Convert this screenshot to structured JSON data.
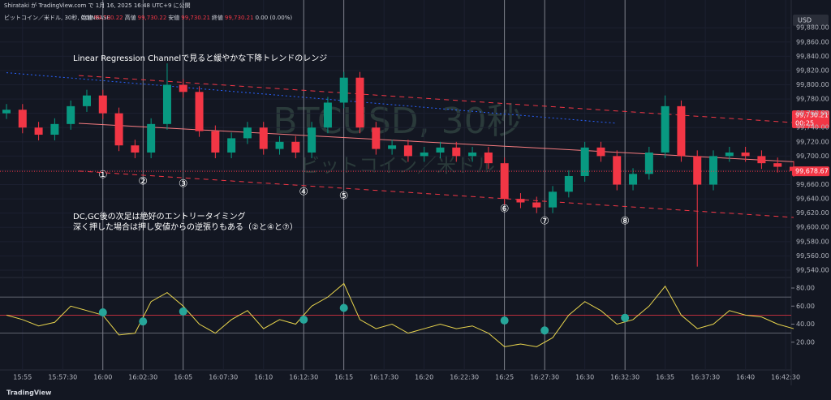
{
  "chart_data": {
    "type": "candlestick",
    "publisher": "Shirataki が TradingView.com で 1月 16, 2025 16:48 UTC+9 に公開",
    "legend": {
      "symbol": "ビットコイン／米ドル, 30秒, COINBASE",
      "items": [
        "始値",
        "99,730.22",
        "高値",
        "99,730.22",
        "安値",
        "99,730.21",
        "終値",
        "99,730.21",
        "0.00 (0.00%)"
      ]
    },
    "watermark": [
      "BTCUSD, 30秒",
      "ビットコイン／米ドル"
    ],
    "currency": "USD",
    "price_box": [
      "99,730.21",
      "00:25"
    ],
    "last_price": {
      "value": 99678.67,
      "label": "99,678.67"
    },
    "footer": "TradingView",
    "annotations": [
      "Linear Regression Channelで見ると緩やかな下降トレンドのレンジ",
      "DC,GC後の次足は絶好のエントリータイミング",
      "深く押した場合は押し安値からの逆張りもある（②と④と⑦）"
    ],
    "markers": {
      "labels": [
        "①",
        "②",
        "③",
        "④",
        "⑤",
        "⑥",
        "⑦",
        "⑧"
      ],
      "x": [
        "16:00",
        "16:02:30",
        "16:05",
        "16:12:30",
        "16:15",
        "16:25",
        "16:27:30",
        "16:32:30"
      ]
    },
    "x": [
      "15:54",
      "15:55",
      "15:56",
      "15:57",
      "15:58",
      "15:59",
      "16:00",
      "16:01",
      "16:02",
      "16:03",
      "16:04",
      "16:05",
      "16:06",
      "16:07",
      "16:08",
      "16:09",
      "16:10",
      "16:11",
      "16:12",
      "16:13",
      "16:14",
      "16:15",
      "16:16",
      "16:17",
      "16:18",
      "16:19",
      "16:20",
      "16:21",
      "16:22",
      "16:23",
      "16:24",
      "16:25",
      "16:26",
      "16:27",
      "16:28",
      "16:29",
      "16:30",
      "16:31",
      "16:32",
      "16:33",
      "16:34",
      "16:35",
      "16:36",
      "16:37",
      "16:38",
      "16:39",
      "16:40",
      "16:41",
      "16:42",
      "16:43"
    ],
    "open": [
      99760,
      99765,
      99740,
      99730,
      99745,
      99770,
      99785,
      99760,
      99715,
      99705,
      99745,
      99800,
      99790,
      99735,
      99705,
      99725,
      99740,
      99710,
      99720,
      99705,
      99740,
      99775,
      99810,
      99740,
      99710,
      99715,
      99700,
      99705,
      99712,
      99700,
      99705,
      99690,
      99640,
      99635,
      99628,
      99650,
      99672,
      99712,
      99700,
      99660,
      99675,
      99705,
      99770,
      99700,
      99660,
      99700,
      99705,
      99700,
      99690,
      99685
    ],
    "high": [
      99773,
      99773,
      99748,
      99753,
      99778,
      99793,
      99793,
      99768,
      99723,
      99753,
      99830,
      99808,
      99798,
      99743,
      99733,
      99748,
      99748,
      99728,
      99728,
      99748,
      99783,
      99818,
      99818,
      99748,
      99723,
      99723,
      99713,
      99720,
      99720,
      99713,
      99713,
      99698,
      99648,
      99643,
      99658,
      99680,
      99720,
      99720,
      99708,
      99683,
      99713,
      99785,
      99778,
      99708,
      99708,
      99713,
      99713,
      99708,
      99698,
      99693
    ],
    "low": [
      99752,
      99732,
      99722,
      99722,
      99737,
      99762,
      99752,
      99707,
      99697,
      99697,
      99737,
      99782,
      99727,
      99697,
      99697,
      99717,
      99702,
      99702,
      99697,
      99697,
      99732,
      99767,
      99732,
      99702,
      99702,
      99692,
      99692,
      99697,
      99692,
      99692,
      99682,
      99632,
      99627,
      99620,
      99620,
      99642,
      99664,
      99692,
      99652,
      99652,
      99667,
      99697,
      99692,
      99545,
      99652,
      99692,
      99692,
      99682,
      99677,
      99671
    ],
    "close": [
      99765,
      99740,
      99730,
      99745,
      99770,
      99785,
      99760,
      99715,
      99705,
      99745,
      99800,
      99790,
      99735,
      99705,
      99725,
      99740,
      99710,
      99720,
      99705,
      99740,
      99775,
      99810,
      99740,
      99710,
      99715,
      99700,
      99705,
      99712,
      99700,
      99705,
      99690,
      99640,
      99635,
      99628,
      99650,
      99672,
      99712,
      99700,
      99660,
      99675,
      99705,
      99770,
      99700,
      99660,
      99700,
      99705,
      99700,
      99690,
      99685,
      99679
    ],
    "up_color": "#089981",
    "down_color": "#f23645",
    "ylim": [
      99532,
      99903
    ],
    "yticks": [
      {
        "value": 99540,
        "label": "99,540.00"
      },
      {
        "value": 99560,
        "label": "99,560.00"
      },
      {
        "value": 99580,
        "label": "99,580.00"
      },
      {
        "value": 99600,
        "label": "99,600.00"
      },
      {
        "value": 99620,
        "label": "99,620.00"
      },
      {
        "value": 99640,
        "label": "99,640.00"
      },
      {
        "value": 99660,
        "label": "99,660.00"
      },
      {
        "value": 99680,
        "label": "99,680.00"
      },
      {
        "value": 99700,
        "label": "99,700.00"
      },
      {
        "value": 99720,
        "label": "99,720.00"
      },
      {
        "value": 99740,
        "label": "99,740.00"
      },
      {
        "value": 99760,
        "label": "99,760.00"
      },
      {
        "value": 99780,
        "label": "99,780.00"
      },
      {
        "value": 99800,
        "label": "99,800.00"
      },
      {
        "value": 99820,
        "label": "99,820.00"
      },
      {
        "value": 99840,
        "label": "99,840.00"
      },
      {
        "value": 99860,
        "label": "99,860.00"
      },
      {
        "value": 99880,
        "label": "99,880.00"
      }
    ],
    "xticks": [
      "15:55",
      "15:57:30",
      "16:00",
      "16:02:30",
      "16:05",
      "16:07:30",
      "16:10",
      "16:12:30",
      "16:15",
      "16:17:30",
      "16:20",
      "16:22:30",
      "16:25",
      "16:27:30",
      "16:30",
      "16:32:30",
      "16:35",
      "16:37:30",
      "16:40",
      "16:42:30"
    ],
    "channel": [
      {
        "x": [
          "15:58:30",
          "16:43"
        ],
        "y": [
          99813,
          99747
        ],
        "color": "#f23645",
        "dash": "6 5"
      },
      {
        "x": [
          "15:58:30",
          "16:43"
        ],
        "y": [
          99746,
          99692
        ],
        "color": "#f77c80",
        "dash": "none"
      },
      {
        "x": [
          "15:58:30",
          "16:43"
        ],
        "y": [
          99679,
          99614
        ],
        "color": "#f23645",
        "dash": "6 5"
      },
      {
        "x": [
          "15:54",
          "16:32"
        ],
        "y": [
          99817,
          99746
        ],
        "color": "#2962ff",
        "dash": "2 3"
      }
    ],
    "oscillator": {
      "values": [
        50,
        45,
        38,
        42,
        60,
        55,
        50,
        28,
        30,
        65,
        75,
        60,
        40,
        30,
        45,
        55,
        35,
        45,
        40,
        60,
        70,
        85,
        45,
        35,
        40,
        30,
        35,
        40,
        35,
        38,
        30,
        15,
        18,
        15,
        25,
        50,
        65,
        55,
        40,
        45,
        60,
        82,
        50,
        35,
        40,
        55,
        50,
        48,
        40,
        35
      ],
      "color": "#e8d44d",
      "ylim": [
        0,
        89
      ],
      "yticks": [
        {
          "value": 20,
          "label": "20.00"
        },
        {
          "value": 40,
          "label": "40.00"
        },
        {
          "value": 60,
          "label": "60.00"
        },
        {
          "value": 80,
          "label": "80.00"
        }
      ],
      "levels": [
        70,
        50,
        30
      ],
      "level_colors": [
        "#787b86",
        "#f23645",
        "#787b86"
      ],
      "crosses": [
        53,
        43,
        54,
        45,
        58,
        44,
        33,
        47
      ],
      "cross_color": "#26a69a"
    }
  }
}
